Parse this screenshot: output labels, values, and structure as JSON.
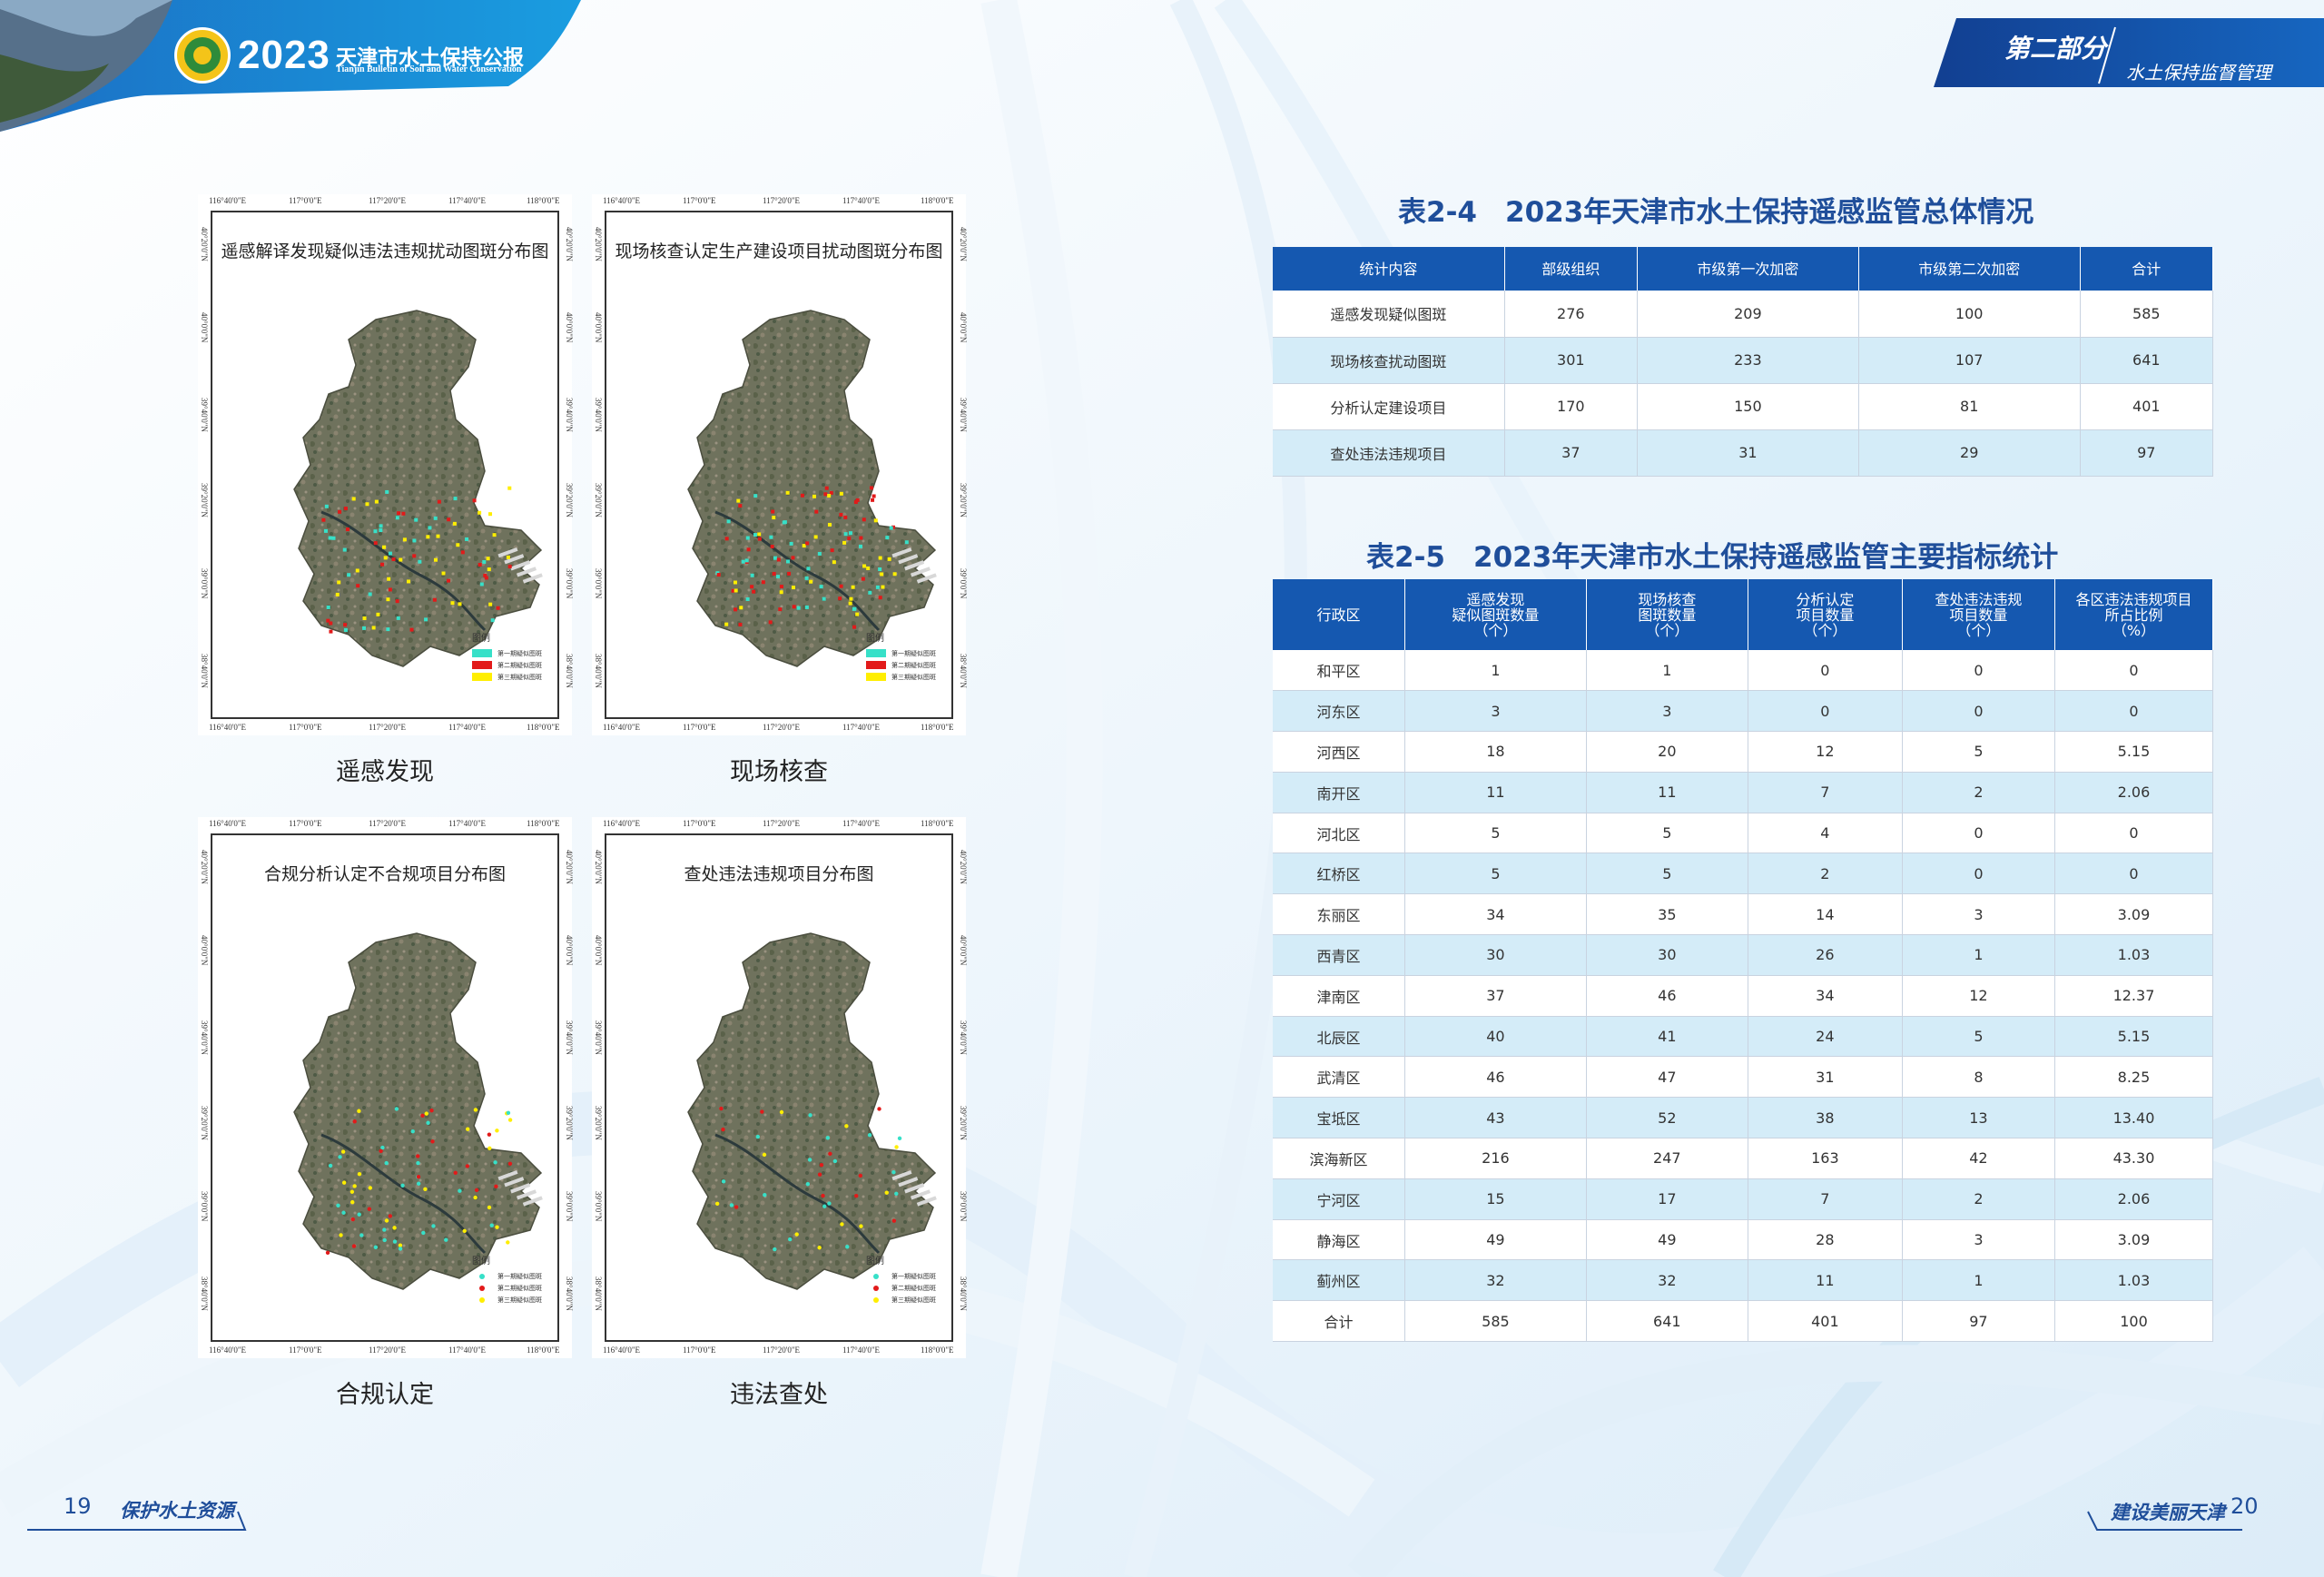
{
  "header": {
    "year": "2023",
    "title": "天津市水土保持公报",
    "subtitle": "Tianjin Bulletin of Soil and Water Conservation",
    "part_label": "第二部分",
    "part_subtitle": "水土保持监督管理"
  },
  "colors": {
    "primary_blue": "#1558b0",
    "title_blue": "#1f4e9a",
    "stripe": "#d4ecf8",
    "legend_cyan": "#37e0c8",
    "legend_red": "#e21a1a",
    "legend_yellow": "#ffee00"
  },
  "maps": [
    {
      "title": "遥感解译发现疑似违法违规扰动图斑分布图",
      "caption": "遥感发现",
      "x_ticks": [
        "116°40'0\"E",
        "117°0'0\"E",
        "117°20'0\"E",
        "117°40'0\"E",
        "118°0'0\"E"
      ],
      "y_ticks": [
        "40°20'0\"N",
        "40°0'0\"N",
        "39°40'0\"N",
        "39°20'0\"N",
        "39°0'0\"N",
        "38°40'0\"N"
      ],
      "legend_title": "图例",
      "legend_items": [
        "第一期疑似图斑",
        "第二期疑似图斑",
        "第三期疑似图斑"
      ]
    },
    {
      "title": "现场核查认定生产建设项目扰动图斑分布图",
      "caption": "现场核查",
      "x_ticks": [
        "116°40'0\"E",
        "117°0'0\"E",
        "117°20'0\"E",
        "117°40'0\"E",
        "118°0'0\"E"
      ],
      "y_ticks": [
        "40°20'0\"N",
        "40°0'0\"N",
        "39°40'0\"N",
        "39°20'0\"N",
        "39°0'0\"N",
        "38°40'0\"N"
      ],
      "legend_title": "图例",
      "legend_items": [
        "第一期疑似图斑",
        "第二期疑似图斑",
        "第三期疑似图斑"
      ]
    },
    {
      "title": "合规分析认定不合规项目分布图",
      "caption": "合规认定",
      "x_ticks": [
        "116°40'0\"E",
        "117°0'0\"E",
        "117°20'0\"E",
        "117°40'0\"E",
        "118°0'0\"E"
      ],
      "y_ticks": [
        "40°20'0\"N",
        "40°0'0\"N",
        "39°40'0\"N",
        "39°20'0\"N",
        "39°0'0\"N",
        "38°40'0\"N"
      ],
      "legend_title": "图例",
      "legend_items": [
        "第一期疑似图斑",
        "第二期疑似图斑",
        "第三期疑似图斑"
      ]
    },
    {
      "title": "查处违法违规项目分布图",
      "caption": "违法查处",
      "x_ticks": [
        "116°40'0\"E",
        "117°0'0\"E",
        "117°20'0\"E",
        "117°40'0\"E",
        "118°0'0\"E"
      ],
      "y_ticks": [
        "40°20'0\"N",
        "40°0'0\"N",
        "39°40'0\"N",
        "39°20'0\"N",
        "39°0'0\"N",
        "38°40'0\"N"
      ],
      "legend_title": "图例",
      "legend_items": [
        "第一期疑似图斑",
        "第二期疑似图斑",
        "第三期疑似图斑"
      ]
    }
  ],
  "table1": {
    "title": "表2-4　2023年天津市水土保持遥感监管总体情况",
    "headers": [
      "统计内容",
      "部级组织",
      "市级第一次加密",
      "市级第二次加密",
      "合计"
    ],
    "rows": [
      [
        "遥感发现疑似图斑",
        "276",
        "209",
        "100",
        "585"
      ],
      [
        "现场核查扰动图斑",
        "301",
        "233",
        "107",
        "641"
      ],
      [
        "分析认定建设项目",
        "170",
        "150",
        "81",
        "401"
      ],
      [
        "查处违法违规项目",
        "37",
        "31",
        "29",
        "97"
      ]
    ]
  },
  "table2": {
    "title": "表2-5　2023年天津市水土保持遥感监管主要指标统计",
    "headers": [
      [
        "行政区"
      ],
      [
        "遥感发现",
        "疑似图斑数量",
        "（个）"
      ],
      [
        "现场核查",
        "图斑数量",
        "（个）"
      ],
      [
        "分析认定",
        "项目数量",
        "（个）"
      ],
      [
        "查处违法违规",
        "项目数量",
        "（个）"
      ],
      [
        "各区违法违规项目",
        "所占比例",
        "（%）"
      ]
    ],
    "rows": [
      [
        "和平区",
        "1",
        "1",
        "0",
        "0",
        "0"
      ],
      [
        "河东区",
        "3",
        "3",
        "0",
        "0",
        "0"
      ],
      [
        "河西区",
        "18",
        "20",
        "12",
        "5",
        "5.15"
      ],
      [
        "南开区",
        "11",
        "11",
        "7",
        "2",
        "2.06"
      ],
      [
        "河北区",
        "5",
        "5",
        "4",
        "0",
        "0"
      ],
      [
        "红桥区",
        "5",
        "5",
        "2",
        "0",
        "0"
      ],
      [
        "东丽区",
        "34",
        "35",
        "14",
        "3",
        "3.09"
      ],
      [
        "西青区",
        "30",
        "30",
        "26",
        "1",
        "1.03"
      ],
      [
        "津南区",
        "37",
        "46",
        "34",
        "12",
        "12.37"
      ],
      [
        "北辰区",
        "40",
        "41",
        "24",
        "5",
        "5.15"
      ],
      [
        "武清区",
        "46",
        "47",
        "31",
        "8",
        "8.25"
      ],
      [
        "宝坻区",
        "43",
        "52",
        "38",
        "13",
        "13.40"
      ],
      [
        "滨海新区",
        "216",
        "247",
        "163",
        "42",
        "43.30"
      ],
      [
        "宁河区",
        "15",
        "17",
        "7",
        "2",
        "2.06"
      ],
      [
        "静海区",
        "49",
        "49",
        "28",
        "3",
        "3.09"
      ],
      [
        "蓟州区",
        "32",
        "32",
        "11",
        "1",
        "1.03"
      ],
      [
        "合计",
        "585",
        "641",
        "401",
        "97",
        "100"
      ]
    ]
  },
  "footer": {
    "left_page": "19",
    "left_text": "保护水土资源",
    "right_text": "建设美丽天津",
    "right_page": "20"
  }
}
